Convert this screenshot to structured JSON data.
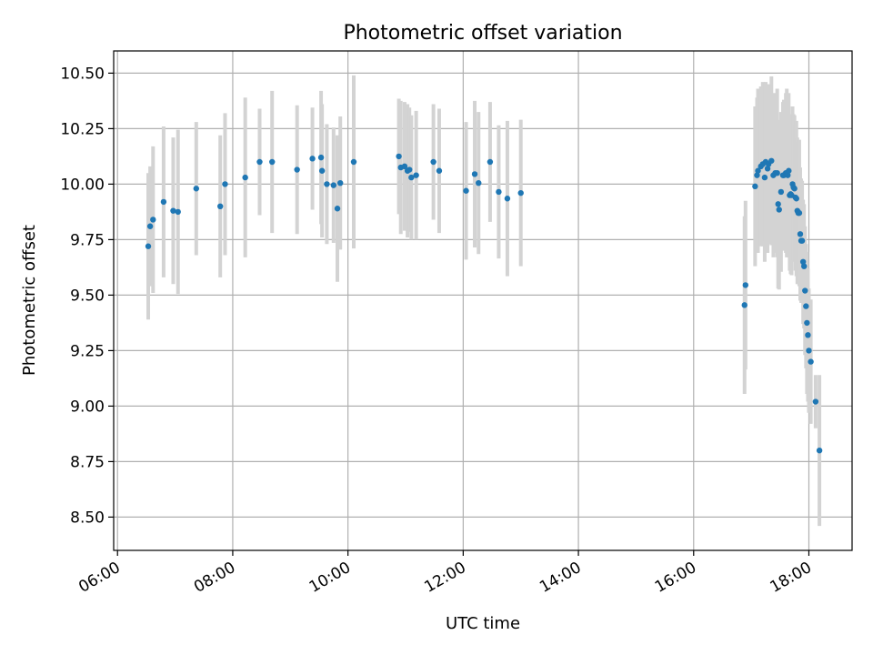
{
  "chart_data": {
    "type": "scatter",
    "title": "Photometric offset variation",
    "xlabel": "UTC time",
    "ylabel": "Photometric offset",
    "xlim": [
      "05:56",
      "18:45"
    ],
    "ylim": [
      8.35,
      10.6
    ],
    "x_ticks": [
      "06:00",
      "08:00",
      "10:00",
      "12:00",
      "14:00",
      "16:00",
      "18:00"
    ],
    "y_ticks": [
      8.5,
      8.75,
      9.0,
      9.25,
      9.5,
      9.75,
      10.0,
      10.25,
      10.5
    ],
    "y_tick_labels": [
      "8.50",
      "8.75",
      "9.00",
      "9.25",
      "9.50",
      "9.75",
      "10.00",
      "10.25",
      "10.50"
    ],
    "grid": true,
    "point_color": "#1f77b4",
    "errorbar_color": "#d3d3d3",
    "series": [
      {
        "x": [
          "06:32",
          "06:34",
          "06:37",
          "06:48",
          "06:58",
          "07:03",
          "07:22",
          "07:47",
          "07:52",
          "08:13",
          "08:28",
          "08:41",
          "09:07",
          "09:23",
          "09:32",
          "09:33",
          "09:38",
          "09:45",
          "09:49",
          "09:52",
          "10:06",
          "10:53",
          "10:55",
          "10:59",
          "11:02",
          "11:04",
          "11:06",
          "11:11",
          "11:29",
          "11:35",
          "12:03",
          "12:12",
          "12:16",
          "12:28",
          "12:37",
          "12:46",
          "13:00",
          "16:53",
          "16:54",
          "17:04",
          "17:06",
          "17:07",
          "17:10",
          "17:12",
          "17:14",
          "17:15",
          "17:17",
          "17:18",
          "17:21",
          "17:23",
          "17:25",
          "17:27",
          "17:28",
          "17:29",
          "17:31",
          "17:33",
          "17:34",
          "17:36",
          "17:37",
          "17:38",
          "17:39",
          "17:40",
          "17:41",
          "17:42",
          "17:43",
          "17:44",
          "17:45",
          "17:46",
          "17:47",
          "17:48",
          "17:49",
          "17:50",
          "17:51",
          "17:52",
          "17:53",
          "17:54",
          "17:55",
          "17:56",
          "17:57",
          "17:58",
          "17:59",
          "18:00",
          "18:02",
          "18:07",
          "18:11"
        ],
        "y": [
          9.72,
          9.81,
          9.84,
          9.92,
          9.88,
          9.875,
          9.98,
          9.9,
          10.0,
          10.03,
          10.1,
          10.1,
          10.065,
          10.115,
          10.12,
          10.06,
          10.0,
          9.995,
          9.89,
          10.005,
          10.1,
          10.125,
          10.075,
          10.08,
          10.06,
          10.065,
          10.03,
          10.04,
          10.1,
          10.06,
          9.97,
          10.045,
          10.005,
          10.1,
          9.965,
          9.935,
          9.96,
          9.455,
          9.545,
          9.99,
          10.04,
          10.06,
          10.08,
          10.09,
          10.03,
          10.1,
          10.07,
          10.09,
          10.105,
          10.04,
          10.05,
          10.05,
          9.91,
          9.885,
          9.965,
          10.04,
          10.04,
          10.05,
          10.05,
          10.04,
          10.06,
          9.95,
          9.955,
          9.95,
          10.0,
          9.985,
          9.98,
          9.94,
          9.935,
          9.88,
          9.87,
          9.87,
          9.775,
          9.745,
          9.745,
          9.65,
          9.63,
          9.52,
          9.45,
          9.375,
          9.32,
          9.25,
          9.2,
          9.02,
          8.8
        ],
        "yerr": [
          0.33,
          0.27,
          0.33,
          0.34,
          0.33,
          0.37,
          0.3,
          0.32,
          0.32,
          0.36,
          0.24,
          0.32,
          0.29,
          0.23,
          0.3,
          0.3,
          0.27,
          0.26,
          0.33,
          0.3,
          0.39,
          0.26,
          0.3,
          0.29,
          0.3,
          0.28,
          0.28,
          0.29,
          0.26,
          0.28,
          0.31,
          0.33,
          0.32,
          0.27,
          0.3,
          0.35,
          0.33,
          0.4,
          0.38,
          0.36,
          0.35,
          0.37,
          0.36,
          0.37,
          0.38,
          0.36,
          0.38,
          0.36,
          0.38,
          0.37,
          0.36,
          0.38,
          0.38,
          0.36,
          0.36,
          0.33,
          0.34,
          0.36,
          0.38,
          0.37,
          0.35,
          0.34,
          0.36,
          0.36,
          0.35,
          0.33,
          0.33,
          0.33,
          0.35,
          0.33,
          0.32,
          0.33,
          0.3,
          0.28,
          0.27,
          0.28,
          0.28,
          0.29,
          0.28,
          0.32,
          0.3,
          0.28,
          0.28,
          0.12,
          0.34
        ]
      }
    ]
  }
}
